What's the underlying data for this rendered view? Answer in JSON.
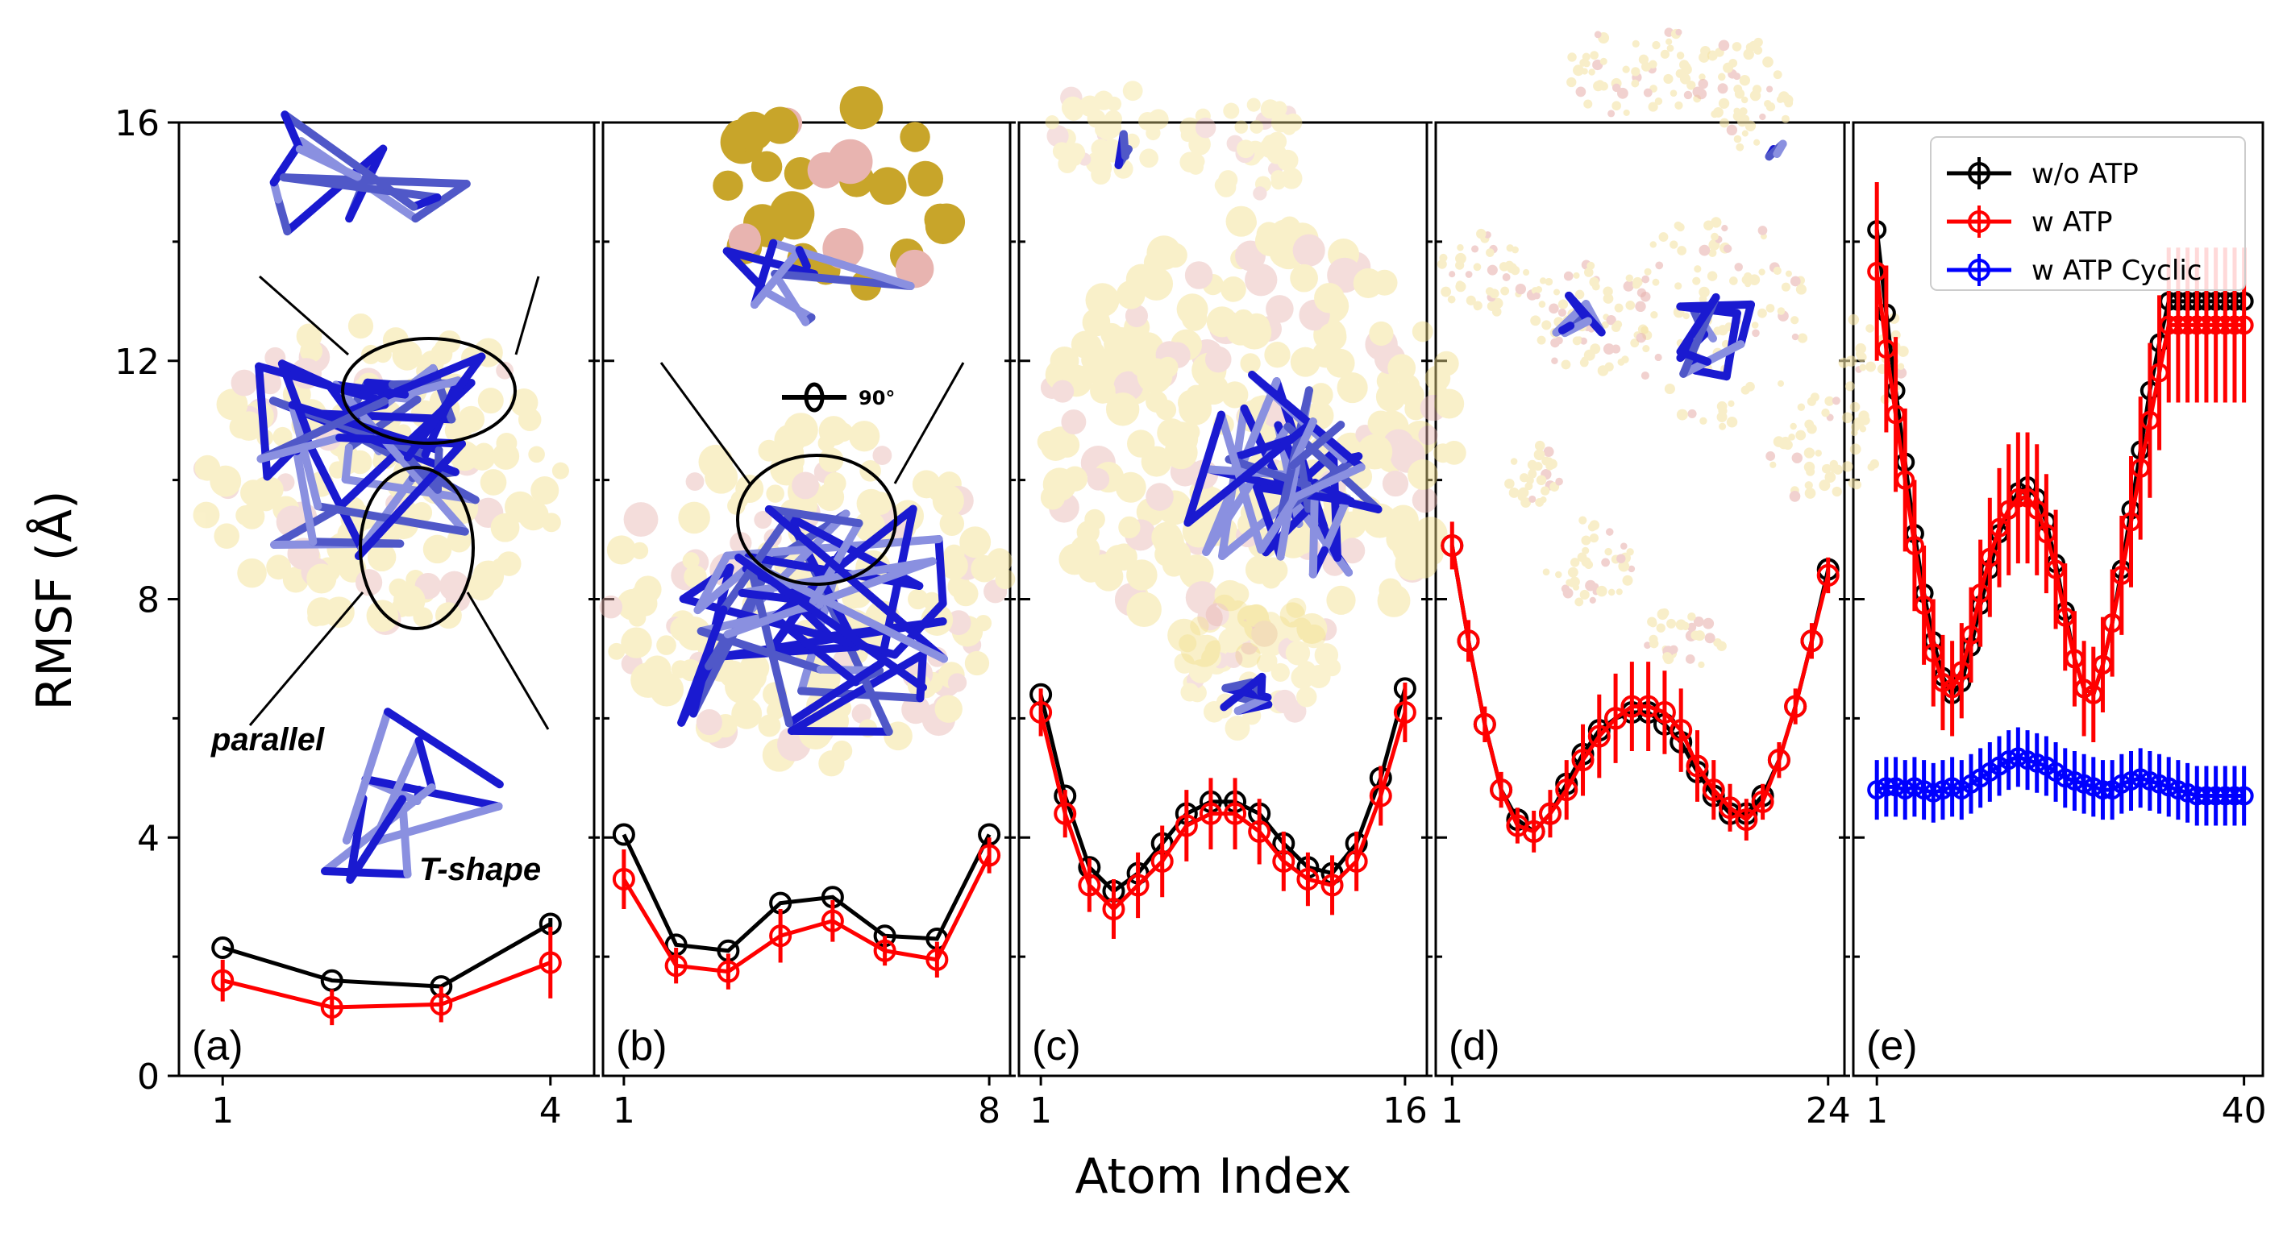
{
  "figure": {
    "ylabel": "RMSF (Å)",
    "xlabel": "Atom Index",
    "annotations": {
      "parallel": "parallel",
      "tshape": "T-shape",
      "rotation": "90°"
    }
  },
  "colors": {
    "wo_atp": "#000000",
    "w_atp": "#ff0000",
    "w_atp_cyclic": "#0000ff"
  },
  "legend": {
    "placement": "top-right of panel (e)",
    "entries": [
      "w/o ATP",
      "w ATP",
      "w ATP Cyclic"
    ]
  },
  "chart_data": [
    {
      "type": "line",
      "panel": "(a)",
      "ylim": [
        0,
        16
      ],
      "yticks": [
        "0",
        "4",
        "8",
        "12",
        "16"
      ],
      "xlim": [
        0.6,
        4.4
      ],
      "xticks": [
        "1",
        "4"
      ],
      "x": [
        1,
        2,
        3,
        4
      ],
      "series": [
        {
          "name": "w/o ATP",
          "values": [
            2.15,
            1.6,
            1.5,
            2.55
          ],
          "errors": [
            0.05,
            0.05,
            0.05,
            0.1
          ]
        },
        {
          "name": "w ATP",
          "values": [
            1.6,
            1.15,
            1.2,
            1.9
          ],
          "errors": [
            0.35,
            0.3,
            0.3,
            0.6
          ]
        }
      ]
    },
    {
      "type": "line",
      "panel": "(b)",
      "ylim": [
        0,
        16
      ],
      "xlim": [
        0.6,
        8.4
      ],
      "xticks": [
        "1",
        "8"
      ],
      "x": [
        1,
        2,
        3,
        4,
        5,
        6,
        7,
        8
      ],
      "series": [
        {
          "name": "w/o ATP",
          "values": [
            4.05,
            2.2,
            2.1,
            2.9,
            3.0,
            2.35,
            2.3,
            4.05
          ],
          "errors": [
            0.05,
            0.05,
            0.05,
            0.05,
            0.05,
            0.05,
            0.05,
            0.05
          ]
        },
        {
          "name": "w ATP",
          "values": [
            3.3,
            1.85,
            1.75,
            2.35,
            2.6,
            2.1,
            1.95,
            3.7
          ],
          "errors": [
            0.5,
            0.3,
            0.3,
            0.45,
            0.35,
            0.25,
            0.3,
            0.3
          ]
        }
      ]
    },
    {
      "type": "line",
      "panel": "(c)",
      "ylim": [
        0,
        16
      ],
      "xlim": [
        0.1,
        16.9
      ],
      "xticks": [
        "1",
        "16"
      ],
      "x": [
        1,
        2,
        3,
        4,
        5,
        6,
        7,
        8,
        9,
        10,
        11,
        12,
        13,
        14,
        15,
        16
      ],
      "series": [
        {
          "name": "w/o ATP",
          "values": [
            6.4,
            4.7,
            3.5,
            3.1,
            3.4,
            3.9,
            4.4,
            4.6,
            4.6,
            4.4,
            3.9,
            3.5,
            3.4,
            3.9,
            5.0,
            6.5
          ],
          "errors": [
            0.05,
            0.05,
            0.05,
            0.05,
            0.05,
            0.05,
            0.05,
            0.05,
            0.05,
            0.05,
            0.05,
            0.05,
            0.05,
            0.05,
            0.05,
            0.05
          ]
        },
        {
          "name": "w ATP",
          "values": [
            6.1,
            4.4,
            3.2,
            2.8,
            3.2,
            3.6,
            4.2,
            4.4,
            4.4,
            4.1,
            3.6,
            3.3,
            3.2,
            3.6,
            4.7,
            6.1
          ],
          "errors": [
            0.4,
            0.4,
            0.45,
            0.5,
            0.55,
            0.6,
            0.6,
            0.6,
            0.6,
            0.55,
            0.5,
            0.45,
            0.5,
            0.5,
            0.5,
            0.5
          ]
        }
      ]
    },
    {
      "type": "line",
      "panel": "(d)",
      "ylim": [
        0,
        16
      ],
      "xlim": [
        0,
        25
      ],
      "xticks": [
        "1",
        "24"
      ],
      "x": [
        1,
        2,
        3,
        4,
        5,
        6,
        7,
        8,
        9,
        10,
        11,
        12,
        13,
        14,
        15,
        16,
        17,
        18,
        19,
        20,
        21,
        22,
        23,
        24
      ],
      "series": [
        {
          "name": "w/o ATP",
          "values": [
            8.9,
            7.3,
            5.9,
            4.8,
            4.3,
            4.1,
            4.4,
            4.9,
            5.4,
            5.8,
            6.0,
            6.1,
            6.1,
            5.9,
            5.6,
            5.1,
            4.7,
            4.4,
            4.4,
            4.7,
            5.3,
            6.2,
            7.3,
            8.5
          ],
          "errors": [
            0.05,
            0.05,
            0.05,
            0.05,
            0.05,
            0.05,
            0.05,
            0.05,
            0.05,
            0.05,
            0.05,
            0.05,
            0.05,
            0.05,
            0.05,
            0.05,
            0.05,
            0.05,
            0.05,
            0.05,
            0.05,
            0.05,
            0.05,
            0.05
          ]
        },
        {
          "name": "w ATP",
          "values": [
            8.9,
            7.3,
            5.9,
            4.8,
            4.2,
            4.1,
            4.4,
            4.8,
            5.3,
            5.7,
            6.0,
            6.2,
            6.2,
            6.1,
            5.8,
            5.2,
            4.8,
            4.5,
            4.3,
            4.6,
            5.3,
            6.2,
            7.3,
            8.4
          ],
          "errors": [
            0.4,
            0.35,
            0.3,
            0.3,
            0.3,
            0.35,
            0.4,
            0.5,
            0.6,
            0.7,
            0.75,
            0.75,
            0.75,
            0.7,
            0.7,
            0.6,
            0.5,
            0.4,
            0.35,
            0.3,
            0.3,
            0.3,
            0.3,
            0.3
          ]
        }
      ]
    },
    {
      "type": "line",
      "panel": "(e)",
      "ylim": [
        0,
        16
      ],
      "xlim": [
        -1.5,
        42
      ],
      "xticks": [
        "1",
        "40"
      ],
      "x": [
        1,
        2,
        3,
        4,
        5,
        6,
        7,
        8,
        9,
        10,
        11,
        12,
        13,
        14,
        15,
        16,
        17,
        18,
        19,
        20,
        21,
        22,
        23,
        24,
        25,
        26,
        27,
        28,
        29,
        30,
        31,
        32,
        33,
        34,
        35,
        36,
        37,
        38,
        39,
        40
      ],
      "series": [
        {
          "name": "w/o ATP",
          "values": [
            14.2,
            12.8,
            11.5,
            10.3,
            9.1,
            8.1,
            7.3,
            6.7,
            6.4,
            6.6,
            7.2,
            7.9,
            8.5,
            9.1,
            9.5,
            9.8,
            9.9,
            9.7,
            9.3,
            8.6,
            7.8,
            7.0,
            6.5,
            6.4,
            6.9,
            7.6,
            8.5,
            9.5,
            10.5,
            11.5,
            12.3,
            13.0,
            13.0,
            13.0,
            13.0,
            13.0,
            13.0,
            13.0,
            13.0,
            13.0
          ],
          "errors": []
        },
        {
          "name": "w ATP",
          "values": [
            13.5,
            12.2,
            11.1,
            10.0,
            8.9,
            7.9,
            7.1,
            6.6,
            6.5,
            6.8,
            7.4,
            8.1,
            8.7,
            9.2,
            9.5,
            9.7,
            9.7,
            9.5,
            9.1,
            8.5,
            7.7,
            7.0,
            6.5,
            6.4,
            6.9,
            7.6,
            8.4,
            9.3,
            10.2,
            11.0,
            11.8,
            12.6,
            12.6,
            12.6,
            12.6,
            12.6,
            12.6,
            12.6,
            12.6,
            12.6
          ],
          "errors": [
            1.5,
            1.4,
            1.3,
            1.2,
            1.1,
            1.0,
            0.9,
            0.8,
            0.8,
            0.8,
            0.8,
            0.9,
            1.0,
            1.0,
            1.1,
            1.1,
            1.1,
            1.1,
            1.0,
            1.0,
            0.9,
            0.8,
            0.8,
            0.8,
            0.8,
            0.9,
            1.0,
            1.1,
            1.2,
            1.3,
            1.3,
            1.3,
            1.3,
            1.3,
            1.3,
            1.3,
            1.3,
            1.3,
            1.3,
            1.3
          ]
        },
        {
          "name": "w ATP Cyclic",
          "values": [
            4.8,
            4.85,
            4.85,
            4.8,
            4.85,
            4.8,
            4.75,
            4.8,
            4.85,
            4.8,
            4.9,
            5.0,
            5.1,
            5.2,
            5.3,
            5.35,
            5.3,
            5.25,
            5.2,
            5.1,
            5.0,
            4.95,
            4.9,
            4.85,
            4.8,
            4.8,
            4.9,
            4.95,
            5.0,
            4.95,
            4.9,
            4.85,
            4.8,
            4.75,
            4.7,
            4.7,
            4.7,
            4.7,
            4.7,
            4.7
          ],
          "errors": [
            0.5,
            0.5,
            0.5,
            0.5,
            0.5,
            0.5,
            0.5,
            0.5,
            0.5,
            0.5,
            0.5,
            0.5,
            0.5,
            0.5,
            0.5,
            0.5,
            0.5,
            0.5,
            0.5,
            0.5,
            0.5,
            0.5,
            0.5,
            0.5,
            0.5,
            0.5,
            0.5,
            0.5,
            0.5,
            0.5,
            0.5,
            0.5,
            0.5,
            0.5,
            0.5,
            0.5,
            0.5,
            0.5,
            0.5,
            0.5
          ]
        }
      ]
    }
  ]
}
